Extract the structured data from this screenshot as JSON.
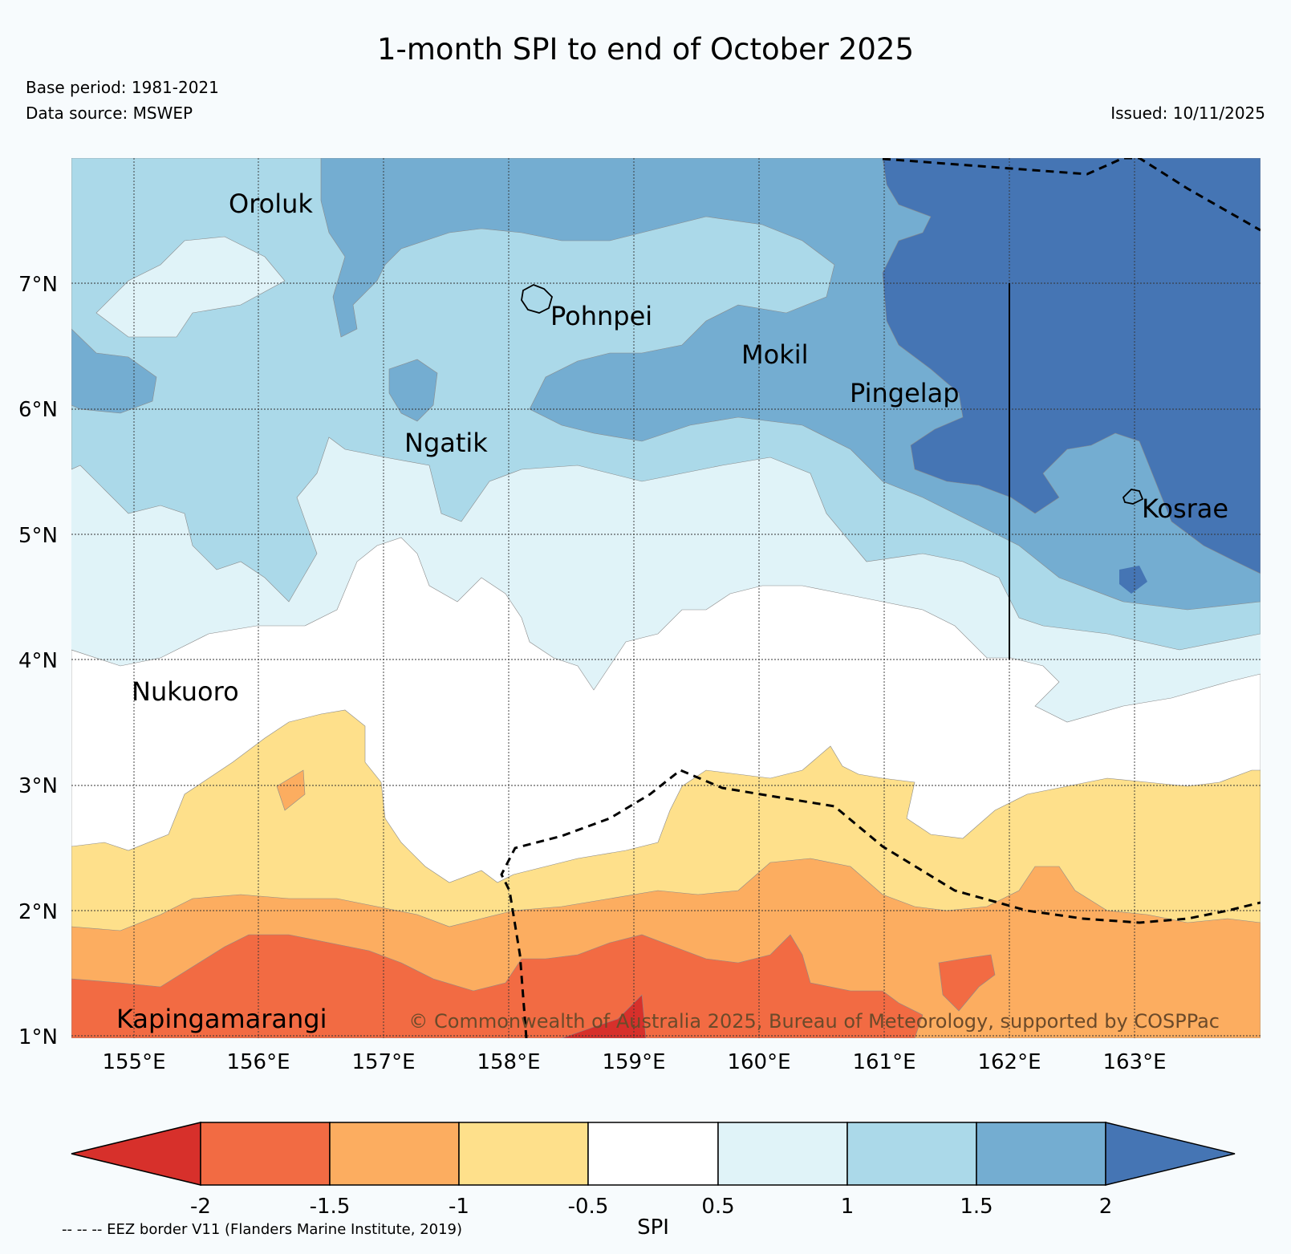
{
  "title": "1-month SPI to end of October 2025",
  "base_period": "Base period: 1981-2021",
  "data_source": "Data source: MSWEP",
  "issued": "Issued: 10/11/2025",
  "latitude_labels": [
    "7°N",
    "6°N",
    "5°N",
    "4°N",
    "3°N",
    "2°N",
    "1°N"
  ],
  "longitude_labels": [
    "155°E",
    "156°E",
    "157°E",
    "158°E",
    "159°E",
    "160°E",
    "161°E",
    "162°E",
    "163°E"
  ],
  "places": [
    {
      "name": "Oroluk"
    },
    {
      "name": "Pohnpei"
    },
    {
      "name": "Mokil"
    },
    {
      "name": "Pingelap"
    },
    {
      "name": "Ngatik"
    },
    {
      "name": "Kosrae"
    },
    {
      "name": "Nukuoro"
    },
    {
      "name": "Kapingamarangi"
    }
  ],
  "credit": "© Commonwealth of Australia 2025, Bureau of Meteorology, supported by COSPPac",
  "colorbar": {
    "label": "SPI",
    "ticks": [
      "-2",
      "-1.5",
      "-1",
      "-0.5",
      "0.5",
      "1",
      "1.5",
      "2"
    ],
    "colors": [
      "#d7302b",
      "#f26b43",
      "#fcad60",
      "#fee08b",
      "#ffffff",
      "#e0f3f8",
      "#abd9e9",
      "#74add1",
      "#4575b4"
    ]
  },
  "eez_note": "-- -- -- EEZ border V11 (Flanders Marine Institute, 2019)"
}
